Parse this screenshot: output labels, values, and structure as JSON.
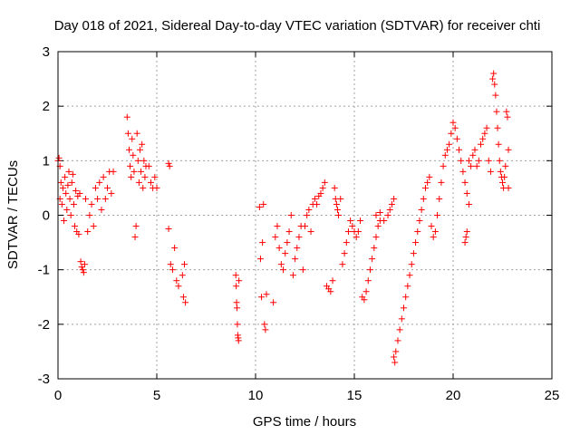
{
  "chart_data": {
    "type": "scatter",
    "title": "Day 018 of 2021, Sidereal Day-to-day VTEC variation (SDTVAR) for receiver chti",
    "xlabel": "GPS time / hours",
    "ylabel": "SDTVAR / TECUs",
    "xlim": [
      0,
      25
    ],
    "ylim": [
      -3,
      3
    ],
    "x_ticks": [
      0,
      5,
      10,
      15,
      20,
      25
    ],
    "y_ticks": [
      -3,
      -2,
      -1,
      0,
      1,
      2,
      3
    ],
    "x_tick_labels": [
      "0",
      "5",
      "10",
      "15",
      "20",
      "25"
    ],
    "y_tick_labels": [
      "-3",
      "-2",
      "-1",
      "0",
      "1",
      "2",
      "3"
    ],
    "grid": true,
    "marker": "+",
    "color": "#ff0000",
    "series": [
      {
        "name": "SDTVAR",
        "points": [
          [
            0.0,
            1.0
          ],
          [
            0.05,
            1.05
          ],
          [
            0.1,
            0.9
          ],
          [
            0.1,
            0.3
          ],
          [
            0.15,
            0.6
          ],
          [
            0.2,
            0.2
          ],
          [
            0.25,
            0.5
          ],
          [
            0.3,
            -0.1
          ],
          [
            0.35,
            0.7
          ],
          [
            0.4,
            0.4
          ],
          [
            0.45,
            0.1
          ],
          [
            0.5,
            0.55
          ],
          [
            0.55,
            0.8
          ],
          [
            0.6,
            0.3
          ],
          [
            0.65,
            0.0
          ],
          [
            0.7,
            0.6
          ],
          [
            0.75,
            0.75
          ],
          [
            0.8,
            0.2
          ],
          [
            0.85,
            -0.2
          ],
          [
            0.9,
            0.45
          ],
          [
            0.95,
            -0.3
          ],
          [
            1.0,
            0.35
          ],
          [
            1.05,
            -0.35
          ],
          [
            1.1,
            0.4
          ],
          [
            1.15,
            -0.85
          ],
          [
            1.2,
            -0.95
          ],
          [
            1.25,
            -1.0
          ],
          [
            1.3,
            -1.05
          ],
          [
            1.35,
            -0.9
          ],
          [
            1.4,
            0.3
          ],
          [
            1.5,
            -0.3
          ],
          [
            1.6,
            0.0
          ],
          [
            1.7,
            0.2
          ],
          [
            1.8,
            -0.2
          ],
          [
            1.9,
            0.5
          ],
          [
            2.0,
            0.3
          ],
          [
            2.1,
            0.6
          ],
          [
            2.2,
            0.1
          ],
          [
            2.3,
            0.7
          ],
          [
            2.4,
            0.3
          ],
          [
            2.5,
            0.5
          ],
          [
            2.6,
            0.8
          ],
          [
            2.7,
            0.4
          ],
          [
            2.8,
            0.8
          ],
          [
            3.5,
            1.8
          ],
          [
            3.55,
            1.5
          ],
          [
            3.6,
            1.2
          ],
          [
            3.65,
            0.9
          ],
          [
            3.7,
            0.7
          ],
          [
            3.75,
            1.4
          ],
          [
            3.8,
            1.1
          ],
          [
            3.85,
            0.8
          ],
          [
            3.9,
            -0.4
          ],
          [
            3.95,
            -0.2
          ],
          [
            4.0,
            1.5
          ],
          [
            4.05,
            1.0
          ],
          [
            4.1,
            0.6
          ],
          [
            4.15,
            1.2
          ],
          [
            4.2,
            0.8
          ],
          [
            4.25,
            1.3
          ],
          [
            4.3,
            0.5
          ],
          [
            4.35,
            1.0
          ],
          [
            4.4,
            0.7
          ],
          [
            4.45,
            0.9
          ],
          [
            4.6,
            0.9
          ],
          [
            4.7,
            0.6
          ],
          [
            4.8,
            0.5
          ],
          [
            4.9,
            0.7
          ],
          [
            5.0,
            0.5
          ],
          [
            5.6,
            0.95
          ],
          [
            5.65,
            0.9
          ],
          [
            5.6,
            -0.25
          ],
          [
            5.7,
            -0.9
          ],
          [
            5.8,
            -1.0
          ],
          [
            5.9,
            -0.6
          ],
          [
            6.0,
            -1.2
          ],
          [
            6.1,
            -1.3
          ],
          [
            6.3,
            -1.1
          ],
          [
            6.35,
            -1.5
          ],
          [
            6.4,
            -0.9
          ],
          [
            6.45,
            -1.6
          ],
          [
            9.0,
            -1.1
          ],
          [
            9.02,
            -1.3
          ],
          [
            9.04,
            -1.6
          ],
          [
            9.06,
            -1.7
          ],
          [
            9.08,
            -2.0
          ],
          [
            9.1,
            -2.2
          ],
          [
            9.12,
            -2.25
          ],
          [
            9.14,
            -2.3
          ],
          [
            9.16,
            -1.2
          ],
          [
            10.2,
            0.15
          ],
          [
            10.25,
            -0.8
          ],
          [
            10.3,
            -1.5
          ],
          [
            10.35,
            -0.5
          ],
          [
            10.4,
            0.2
          ],
          [
            10.45,
            -2.0
          ],
          [
            10.5,
            -2.1
          ],
          [
            10.55,
            -1.45
          ],
          [
            10.9,
            -1.6
          ],
          [
            11.0,
            -0.4
          ],
          [
            11.1,
            -0.2
          ],
          [
            11.2,
            -0.6
          ],
          [
            11.3,
            -0.9
          ],
          [
            11.4,
            -1.0
          ],
          [
            11.5,
            -0.7
          ],
          [
            11.6,
            -0.5
          ],
          [
            11.7,
            -0.3
          ],
          [
            11.8,
            0.0
          ],
          [
            11.9,
            -1.1
          ],
          [
            12.0,
            -0.8
          ],
          [
            12.1,
            -0.6
          ],
          [
            12.2,
            -0.4
          ],
          [
            12.3,
            -0.2
          ],
          [
            12.4,
            -1.0
          ],
          [
            12.5,
            -0.2
          ],
          [
            12.6,
            0.0
          ],
          [
            12.7,
            0.1
          ],
          [
            12.8,
            -0.3
          ],
          [
            12.9,
            0.2
          ],
          [
            13.0,
            0.3
          ],
          [
            13.1,
            0.2
          ],
          [
            13.2,
            0.35
          ],
          [
            13.3,
            0.4
          ],
          [
            13.4,
            0.5
          ],
          [
            13.5,
            0.6
          ],
          [
            13.6,
            -1.3
          ],
          [
            13.7,
            -1.35
          ],
          [
            13.8,
            -1.4
          ],
          [
            13.9,
            -1.2
          ],
          [
            14.0,
            0.5
          ],
          [
            14.05,
            0.3
          ],
          [
            14.1,
            0.2
          ],
          [
            14.15,
            0.1
          ],
          [
            14.2,
            0.0
          ],
          [
            14.3,
            0.3
          ],
          [
            14.4,
            -0.9
          ],
          [
            14.5,
            -0.7
          ],
          [
            14.6,
            -0.5
          ],
          [
            14.7,
            -0.3
          ],
          [
            14.8,
            -0.1
          ],
          [
            14.9,
            -0.2
          ],
          [
            15.0,
            -0.3
          ],
          [
            15.1,
            -0.4
          ],
          [
            15.2,
            -0.3
          ],
          [
            15.3,
            -0.1
          ],
          [
            15.4,
            -1.5
          ],
          [
            15.5,
            -1.55
          ],
          [
            15.6,
            -1.4
          ],
          [
            15.7,
            -1.2
          ],
          [
            15.8,
            -1.0
          ],
          [
            15.9,
            -0.8
          ],
          [
            16.0,
            -0.6
          ],
          [
            16.1,
            -0.4
          ],
          [
            16.2,
            -0.2
          ],
          [
            16.3,
            -0.1
          ],
          [
            16.1,
            0.0
          ],
          [
            16.3,
            0.05
          ],
          [
            16.5,
            -0.1
          ],
          [
            16.7,
            0.0
          ],
          [
            16.8,
            0.1
          ],
          [
            16.9,
            0.2
          ],
          [
            17.0,
            0.3
          ],
          [
            17.0,
            -2.6
          ],
          [
            17.05,
            -2.7
          ],
          [
            17.1,
            -2.5
          ],
          [
            17.2,
            -2.3
          ],
          [
            17.3,
            -2.1
          ],
          [
            17.4,
            -1.9
          ],
          [
            17.5,
            -1.7
          ],
          [
            17.6,
            -1.5
          ],
          [
            17.7,
            -1.3
          ],
          [
            17.8,
            -1.1
          ],
          [
            17.9,
            -0.9
          ],
          [
            18.0,
            -0.7
          ],
          [
            18.1,
            -0.5
          ],
          [
            18.2,
            -0.3
          ],
          [
            18.3,
            -0.1
          ],
          [
            18.4,
            0.1
          ],
          [
            18.5,
            0.3
          ],
          [
            18.6,
            0.5
          ],
          [
            18.7,
            0.6
          ],
          [
            18.8,
            0.7
          ],
          [
            18.9,
            -0.2
          ],
          [
            19.0,
            -0.4
          ],
          [
            19.1,
            -0.3
          ],
          [
            19.2,
            0.0
          ],
          [
            19.3,
            0.3
          ],
          [
            19.4,
            0.6
          ],
          [
            19.5,
            0.9
          ],
          [
            19.6,
            1.1
          ],
          [
            19.7,
            1.2
          ],
          [
            19.8,
            1.3
          ],
          [
            19.9,
            1.5
          ],
          [
            20.0,
            1.7
          ],
          [
            20.1,
            1.6
          ],
          [
            20.2,
            1.4
          ],
          [
            20.3,
            1.2
          ],
          [
            20.4,
            1.0
          ],
          [
            20.5,
            0.8
          ],
          [
            20.6,
            0.6
          ],
          [
            20.7,
            0.4
          ],
          [
            20.8,
            0.2
          ],
          [
            20.6,
            -0.5
          ],
          [
            20.65,
            -0.4
          ],
          [
            20.7,
            -0.3
          ],
          [
            20.8,
            1.0
          ],
          [
            20.9,
            0.9
          ],
          [
            21.0,
            1.1
          ],
          [
            21.1,
            1.2
          ],
          [
            21.2,
            0.9
          ],
          [
            21.3,
            1.0
          ],
          [
            21.4,
            1.3
          ],
          [
            21.5,
            1.4
          ],
          [
            21.6,
            1.5
          ],
          [
            21.7,
            1.6
          ],
          [
            21.8,
            1.0
          ],
          [
            21.9,
            0.8
          ],
          [
            22.0,
            2.5
          ],
          [
            22.05,
            2.6
          ],
          [
            22.1,
            2.4
          ],
          [
            22.15,
            2.2
          ],
          [
            22.2,
            1.9
          ],
          [
            22.25,
            1.6
          ],
          [
            22.3,
            1.3
          ],
          [
            22.35,
            1.0
          ],
          [
            22.4,
            0.8
          ],
          [
            22.45,
            0.7
          ],
          [
            22.5,
            0.6
          ],
          [
            22.55,
            0.5
          ],
          [
            22.6,
            0.7
          ],
          [
            22.65,
            0.9
          ],
          [
            22.7,
            1.9
          ],
          [
            22.75,
            1.8
          ],
          [
            22.8,
            1.2
          ],
          [
            22.8,
            0.5
          ]
        ]
      }
    ]
  }
}
